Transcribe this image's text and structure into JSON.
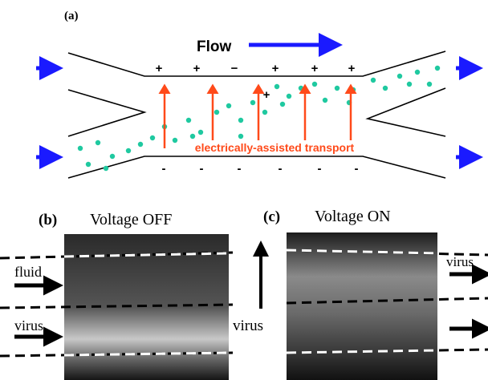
{
  "panel_a": {
    "label": "(a)",
    "flow": "Flow",
    "signs_top": [
      "+",
      "+",
      "−",
      "+",
      "+",
      "+"
    ],
    "sign_extra": "+",
    "signs_bottom": [
      "-",
      "-",
      "-",
      "-",
      "-",
      "-"
    ],
    "annotation": "electrically-assisted transport"
  },
  "panel_b": {
    "label": "(b)",
    "title": "Voltage OFF",
    "fluid": "fluid",
    "virus_left": "virus",
    "virus_right": "virus"
  },
  "panel_c": {
    "label": "(c)",
    "title": "Voltage ON",
    "virus": "virus"
  }
}
